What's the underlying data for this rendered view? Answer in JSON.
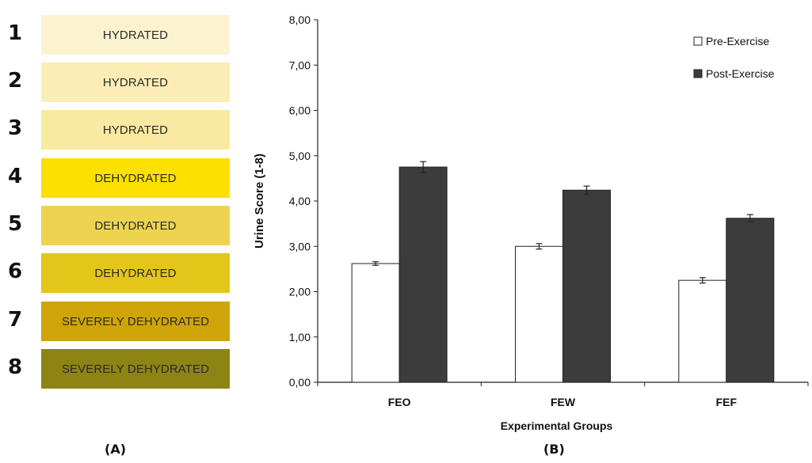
{
  "panel_a": {
    "rows": [
      {
        "number": "1",
        "label": "HYDRATED",
        "color": "#FBF2D0"
      },
      {
        "number": "2",
        "label": "HYDRATED",
        "color": "#FBEDB5"
      },
      {
        "number": "3",
        "label": "HYDRATED",
        "color": "#FAE9A0"
      },
      {
        "number": "4",
        "label": "DEHYDRATED",
        "color": "#FBE000"
      },
      {
        "number": "5",
        "label": "DEHYDRATED",
        "color": "#EDD350"
      },
      {
        "number": "6",
        "label": "DEHYDRATED",
        "color": "#E4C519"
      },
      {
        "number": "7",
        "label": "SEVERELY DEHYDRATED",
        "color": "#CFA408"
      },
      {
        "number": "8",
        "label": "SEVERELY DEHYDRATED",
        "color": "#8D8414"
      }
    ],
    "caption": "(A)"
  },
  "panel_b": {
    "caption": "(B)"
  },
  "chart_data": {
    "type": "bar",
    "categories": [
      "FEO",
      "FEW",
      "FEF"
    ],
    "series": [
      {
        "name": "Pre-Exercise",
        "values": [
          2.62,
          3.0,
          2.25
        ],
        "errors": [
          0.04,
          0.06,
          0.06
        ],
        "color": "#ffffff"
      },
      {
        "name": "Post-Exercise",
        "values": [
          4.75,
          4.24,
          3.62
        ],
        "errors": [
          0.12,
          0.09,
          0.08
        ],
        "color": "#3c3c3c"
      }
    ],
    "xlabel": "Experimental Groups",
    "ylabel": "Urine Score (1-8)",
    "ylim": [
      0,
      8
    ],
    "yticks": [
      "0,00",
      "1,00",
      "2,00",
      "3,00",
      "4,00",
      "5,00",
      "6,00",
      "7,00",
      "8,00"
    ],
    "grid": false,
    "legend_position": "top-right"
  }
}
